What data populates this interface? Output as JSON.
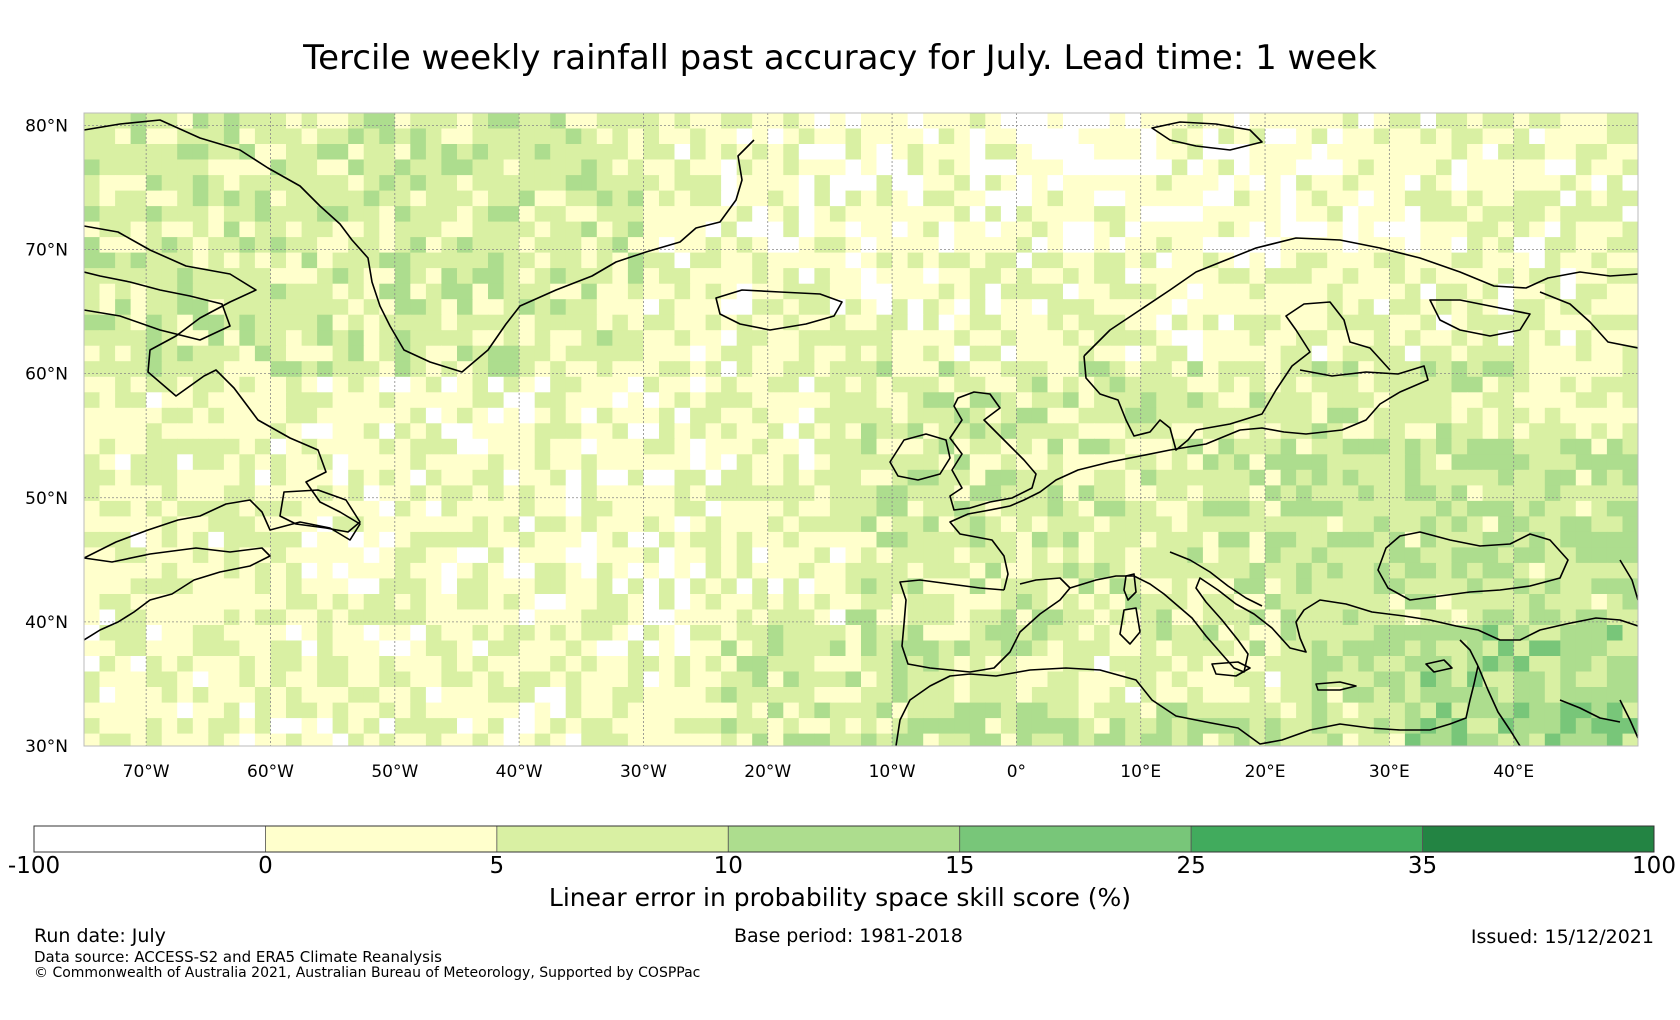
{
  "title": "Tercile weekly rainfall past accuracy for July. Lead time: 1 week",
  "map": {
    "lat_labels": [
      "80°N",
      "70°N",
      "60°N",
      "50°N",
      "40°N",
      "30°N"
    ],
    "lat_values": [
      80,
      70,
      60,
      50,
      40,
      30
    ],
    "lon_labels": [
      "70°W",
      "60°W",
      "50°W",
      "40°W",
      "30°W",
      "20°W",
      "10°W",
      "0°",
      "10°E",
      "20°E",
      "30°E",
      "40°E"
    ],
    "lon_values": [
      -70,
      -60,
      -50,
      -40,
      -30,
      -20,
      -10,
      0,
      10,
      20,
      30,
      40
    ],
    "extent": {
      "lon_min": -75,
      "lon_max": 50,
      "lat_min": 30,
      "lat_max": 81
    },
    "gridlines": true
  },
  "colorbar": {
    "ticks": [
      "-100",
      "0",
      "5",
      "10",
      "15",
      "25",
      "35",
      "100"
    ],
    "colors": [
      "#ffffff",
      "#ffffcc",
      "#d9f0a3",
      "#addd8e",
      "#78c679",
      "#41ab5d",
      "#238443"
    ],
    "label": "Linear error in probability space skill score (%)"
  },
  "footer": {
    "run_date": "Run date: July",
    "base_period": "Base period: 1981-2018",
    "issued": "Issued: 15/12/2021",
    "data_source": "Data source: ACCESS-S2 and ERA5 Climate Reanalysis",
    "copyright": "© Commonwealth of Australia 2021, Australian Bureau of Meteorology, Supported by COSPPac"
  }
}
